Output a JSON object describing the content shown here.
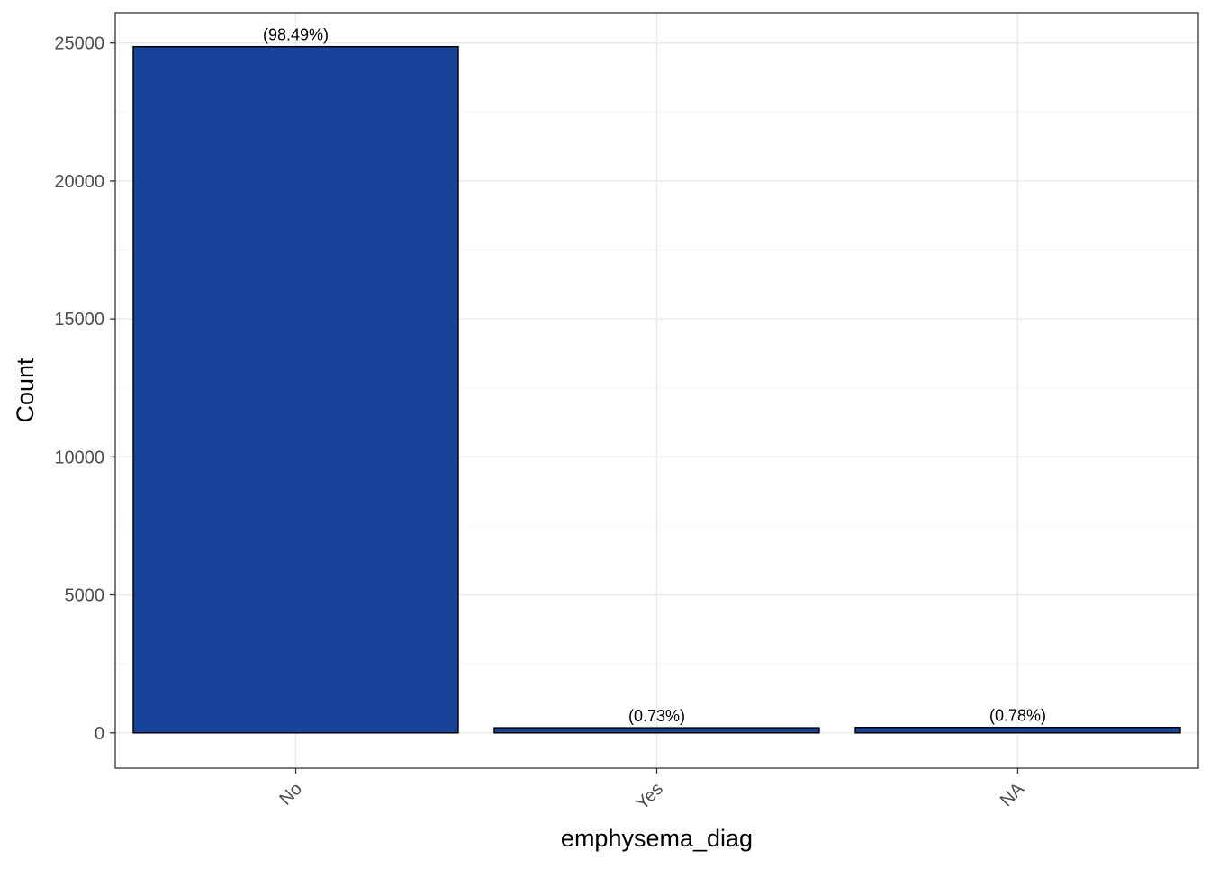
{
  "chart_data": {
    "type": "bar",
    "title": "",
    "xlabel": "emphysema_diag",
    "ylabel": "Count",
    "categories": [
      "No",
      "Yes",
      "NA"
    ],
    "values": [
      24870,
      184,
      197
    ],
    "bar_labels": [
      "(98.49%)",
      "(0.73%)",
      "(0.78%)"
    ],
    "ylim": [
      -1280,
      26100
    ],
    "y_ticks": [
      0,
      5000,
      10000,
      15000,
      20000,
      25000
    ],
    "y_tick_labels": [
      "0",
      "5000",
      "10000",
      "15000",
      "20000",
      "25000"
    ],
    "x_tick_rotation_deg": -45,
    "grid": true,
    "legend": "none",
    "colors": {
      "bar_fill": "#17449A",
      "bar_stroke": "#000000",
      "grid_major": "#EBEBEB",
      "grid_minor": "#F5F5F5",
      "panel_border": "#333333",
      "background": "#FFFFFF"
    }
  }
}
